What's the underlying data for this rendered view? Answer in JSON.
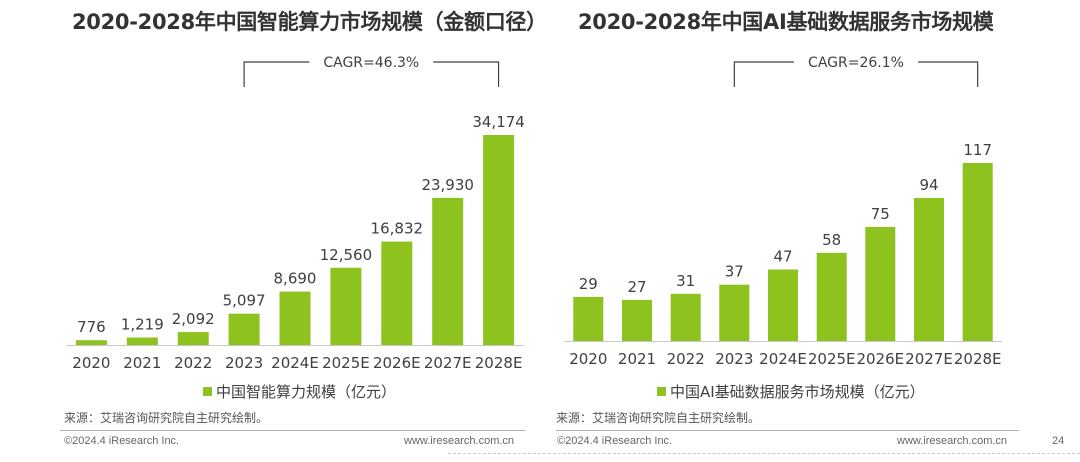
{
  "titles": {
    "left": "2020-2028年中国智能算力市场规模（金额口径）",
    "right": "2020-2028年中国AI基础数据服务市场规模"
  },
  "legends": {
    "left": "中国智能算力规模（亿元）",
    "right": "中国AI基础数据服务市场规模（亿元）"
  },
  "source": "来源：艾瑞咨询研究院自主研究绘制。",
  "footer": {
    "copyright": "©2024.4 iResearch Inc.",
    "url": "www.iresearch.com.cn",
    "page_number": "24"
  },
  "colors": {
    "bar": "#8dc21f",
    "bracket": "#404040",
    "text": "#404040"
  },
  "chart_data": [
    {
      "type": "bar",
      "title": "2020-2028年中国智能算力市场规模（金额口径）",
      "categories": [
        "2020",
        "2021",
        "2022",
        "2023",
        "2024E",
        "2025E",
        "2026E",
        "2027E",
        "2028E"
      ],
      "series": [
        {
          "name": "中国智能算力规模（亿元）",
          "values": [
            776,
            1219,
            2092,
            5097,
            8690,
            12560,
            16832,
            23930,
            34174
          ],
          "labels": [
            "776",
            "1,219",
            "2,092",
            "5,097",
            "8,690",
            "12,560",
            "16,832",
            "23,930",
            "34,174"
          ]
        }
      ],
      "annotation": {
        "text": "CAGR=46.3%",
        "from": "2023",
        "to": "2028E"
      },
      "ylim": [
        0,
        34174
      ],
      "grid": false,
      "legend": "bottom"
    },
    {
      "type": "bar",
      "title": "2020-2028年中国AI基础数据服务市场规模",
      "categories": [
        "2020",
        "2021",
        "2022",
        "2023",
        "2024E",
        "2025E",
        "2026E",
        "2027E",
        "2028E"
      ],
      "series": [
        {
          "name": "中国AI基础数据服务市场规模（亿元）",
          "values": [
            29,
            27,
            31,
            37,
            47,
            58,
            75,
            94,
            117
          ],
          "labels": [
            "29",
            "27",
            "31",
            "37",
            "47",
            "58",
            "75",
            "94",
            "117"
          ]
        }
      ],
      "annotation": {
        "text": "CAGR=26.1%",
        "from": "2023",
        "to": "2028E"
      },
      "ylim": [
        0,
        117
      ],
      "grid": false,
      "legend": "bottom"
    }
  ]
}
